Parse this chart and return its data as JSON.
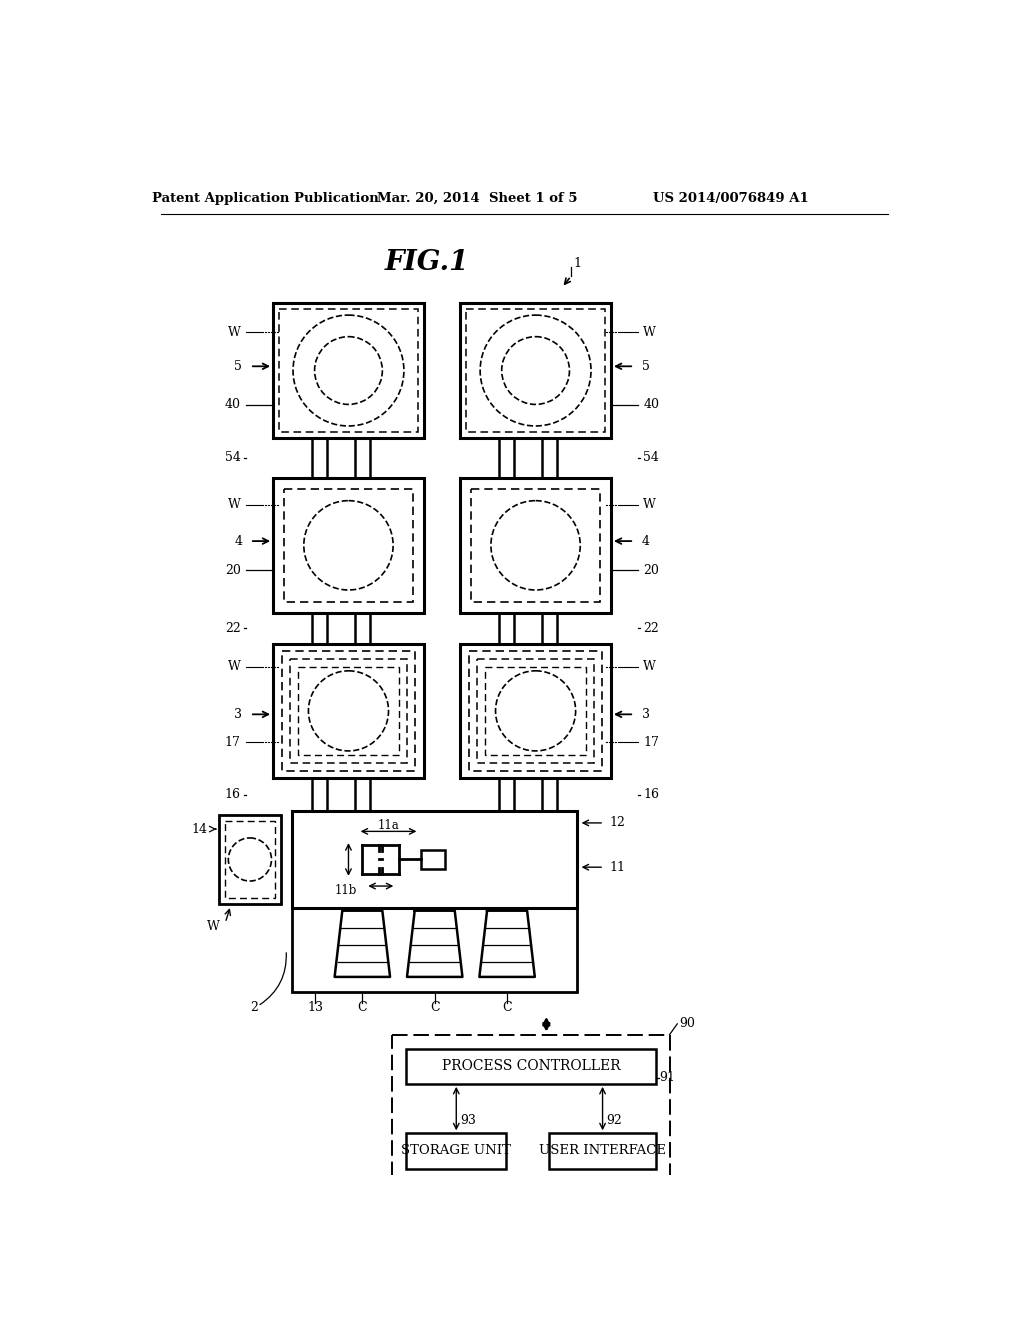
{
  "bg_color": "#ffffff",
  "title_text": "FIG.1",
  "header_left": "Patent Application Publication",
  "header_mid": "Mar. 20, 2014  Sheet 1 of 5",
  "header_right": "US 2014/0076849 A1"
}
